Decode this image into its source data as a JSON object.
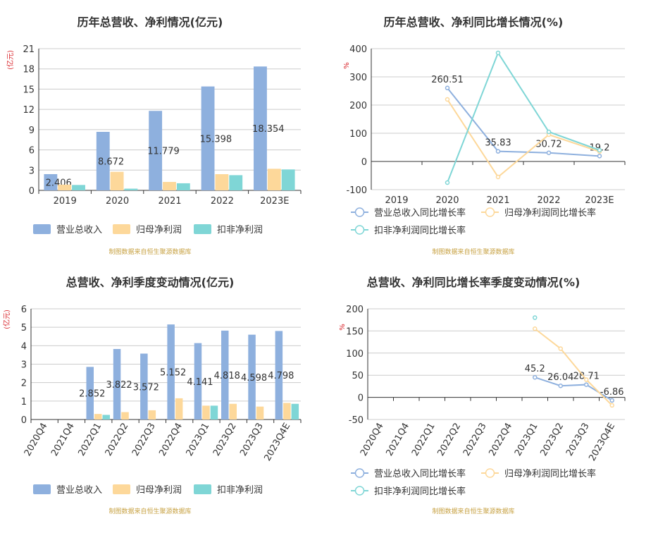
{
  "colors": {
    "revenue": "#8eb0de",
    "parent_profit": "#fdd89a",
    "deducted_profit": "#7fd6d6",
    "axis_red": "#d9262c",
    "source": "#c7a142",
    "grid": "#cccccc",
    "axis": "#333333",
    "text": "#333333"
  },
  "source_note": "制图数据来自恒生聚源数据库",
  "chart_data": [
    {
      "id": "annual_values",
      "type": "bar",
      "title": "历年总营收、净利情况(亿元)",
      "ylabel": "(亿元)",
      "ylim": [
        0,
        21
      ],
      "yticks": [
        0,
        3,
        6,
        9,
        12,
        15,
        18,
        21
      ],
      "grid": true,
      "legend_position": "bottom-left",
      "categories": [
        "2019",
        "2020",
        "2021",
        "2022",
        "2023E"
      ],
      "series": [
        {
          "name": "营业总收入",
          "values": [
            2.406,
            8.672,
            11.779,
            15.398,
            18.354
          ],
          "labels": [
            "2.406",
            "8.672",
            "11.779",
            "15.398",
            "18.354"
          ]
        },
        {
          "name": "归母净利润",
          "values": [
            0.85,
            2.75,
            1.25,
            2.4,
            3.2
          ]
        },
        {
          "name": "扣非净利润",
          "values": [
            0.8,
            0.25,
            1.05,
            2.25,
            3.1
          ]
        }
      ]
    },
    {
      "id": "annual_growth",
      "type": "line",
      "title": "历年总营收、净利同比增长情况(%)",
      "ylabel": "%",
      "ylim": [
        -100,
        400
      ],
      "yticks": [
        -100,
        0,
        100,
        200,
        300,
        400
      ],
      "grid": true,
      "legend_position": "bottom-left",
      "categories": [
        "2019",
        "2020",
        "2021",
        "2022",
        "2023E"
      ],
      "series": [
        {
          "name": "营业总收入同比增长率",
          "values": [
            null,
            260.51,
            35.83,
            30.72,
            19.2
          ],
          "labels": [
            "",
            "260.51",
            "35.83",
            "30.72",
            "19.2"
          ]
        },
        {
          "name": "归母净利润同比增长率",
          "values": [
            null,
            220,
            -55,
            95,
            35
          ]
        },
        {
          "name": "扣非净利润同比增长率",
          "values": [
            null,
            -75,
            385,
            105,
            40
          ]
        }
      ]
    },
    {
      "id": "quarter_values",
      "type": "bar",
      "title": "总营收、净利季度变动情况(亿元)",
      "ylabel": "(亿元)",
      "ylim": [
        0,
        6
      ],
      "yticks": [
        0,
        1,
        2,
        3,
        4,
        5,
        6
      ],
      "grid": true,
      "legend_position": "bottom-left",
      "categories": [
        "2020Q4",
        "2021Q4",
        "2022Q1",
        "2022Q2",
        "2022Q3",
        "2022Q4",
        "2023Q1",
        "2023Q2",
        "2023Q3",
        "2023Q4E"
      ],
      "series": [
        {
          "name": "营业总收入",
          "values": [
            null,
            null,
            2.852,
            3.822,
            3.572,
            5.152,
            4.141,
            4.818,
            4.598,
            4.798
          ],
          "labels": [
            "",
            "",
            "2.852",
            "3.822",
            "3.572",
            "5.152",
            "4.141",
            "4.818",
            "4.598",
            "4.798"
          ]
        },
        {
          "name": "归母净利润",
          "values": [
            null,
            null,
            0.3,
            0.4,
            0.5,
            1.15,
            0.75,
            0.85,
            0.7,
            0.9
          ]
        },
        {
          "name": "扣非净利润",
          "values": [
            null,
            null,
            0.25,
            null,
            null,
            null,
            0.75,
            null,
            null,
            0.85
          ]
        }
      ]
    },
    {
      "id": "quarter_growth",
      "type": "line",
      "title": "总营收、净利同比增长率季度变动情况(%)",
      "ylabel": "%",
      "ylim": [
        -50,
        200
      ],
      "yticks": [
        -50,
        0,
        50,
        100,
        150,
        200
      ],
      "grid": true,
      "legend_position": "bottom-left",
      "categories": [
        "2020Q4",
        "2021Q4",
        "2022Q1",
        "2022Q2",
        "2022Q3",
        "2022Q4",
        "2023Q1",
        "2023Q2",
        "2023Q3",
        "2023Q4E"
      ],
      "series": [
        {
          "name": "营业总收入同比增长率",
          "values": [
            null,
            null,
            null,
            null,
            null,
            null,
            45.2,
            26.04,
            28.71,
            -6.86
          ],
          "labels": [
            "",
            "",
            "",
            "",
            "",
            "",
            "45.2",
            "26.04",
            "28.71",
            "-6.86"
          ]
        },
        {
          "name": "归母净利润同比增长率",
          "values": [
            null,
            null,
            null,
            null,
            null,
            null,
            155,
            110,
            40,
            -18
          ]
        },
        {
          "name": "扣非净利润同比增长率",
          "values": [
            null,
            null,
            null,
            null,
            null,
            null,
            180,
            null,
            null,
            null
          ]
        }
      ]
    }
  ]
}
